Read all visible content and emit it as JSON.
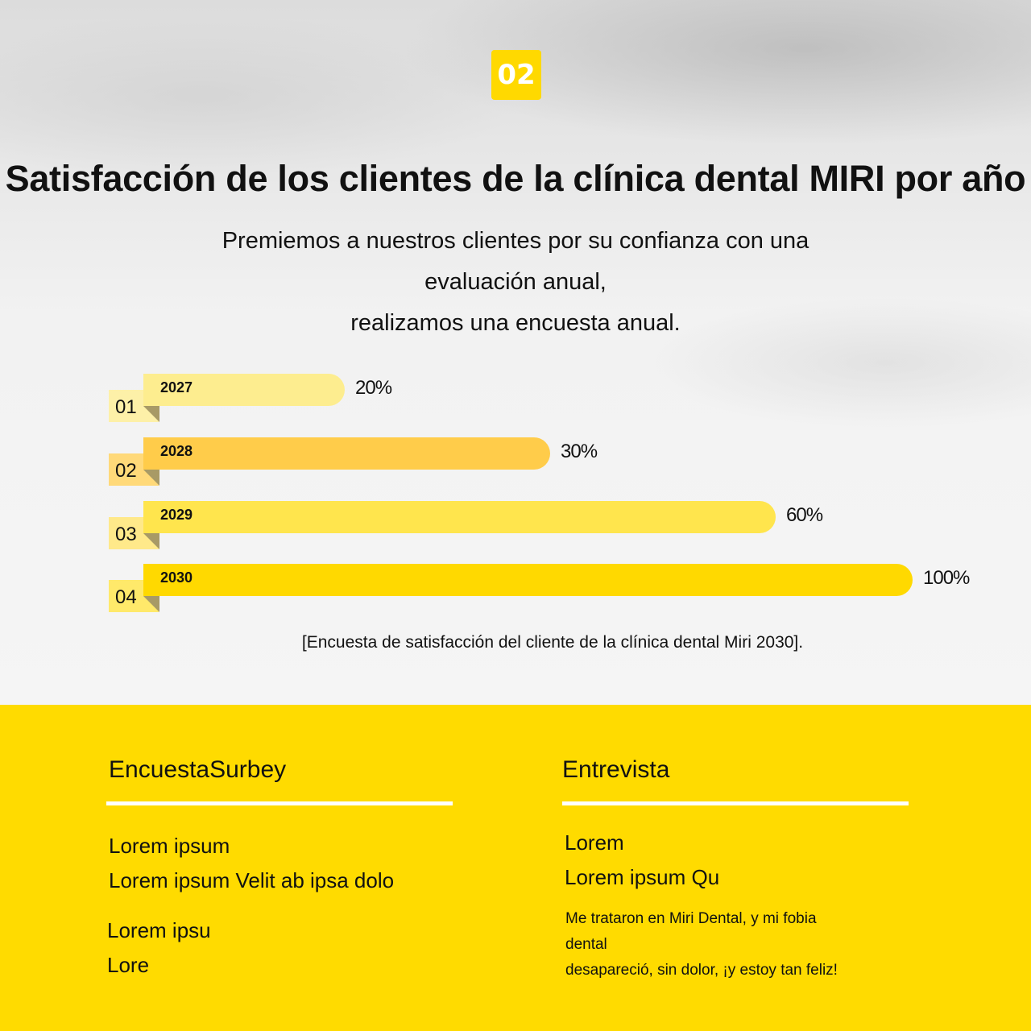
{
  "badge": "02",
  "title": "Satisfacción de los clientes de la clínica dental MIRI por año",
  "subtitle": [
    "Premiemos a nuestros clientes por su confianza con una",
    "evaluación anual,",
    "realizamos una encuesta anual."
  ],
  "chart_data": {
    "type": "bar",
    "orientation": "horizontal",
    "categories": [
      "2027",
      "2028",
      "2029",
      "2030"
    ],
    "indices": [
      "01",
      "02",
      "03",
      "04"
    ],
    "values": [
      20,
      30,
      60,
      100
    ],
    "labels": [
      "20%",
      "30%",
      "60%",
      "100%"
    ],
    "colors": [
      "#FDED8F",
      "#FFCC4A",
      "#FFE54D",
      "#FFD900"
    ],
    "caption": "[Encuesta de satisfacción del cliente de la clínica dental Miri 2030]."
  },
  "footer": {
    "bg": "#FFDB00",
    "left": {
      "heading": "EncuestaSurbey",
      "items": [
        "Lorem ipsum",
        "Lorem ipsum Velit ab ipsa dolo",
        "Lorem ipsu",
        "Lore"
      ]
    },
    "right": {
      "heading": "Entrevista",
      "items": [
        "Lorem",
        "Lorem ipsum Qu"
      ],
      "quote": [
        "Me trataron en Miri Dental, y mi fobia",
        "dental",
        "desapareció, sin dolor, ¡y estoy tan feliz!"
      ]
    }
  }
}
